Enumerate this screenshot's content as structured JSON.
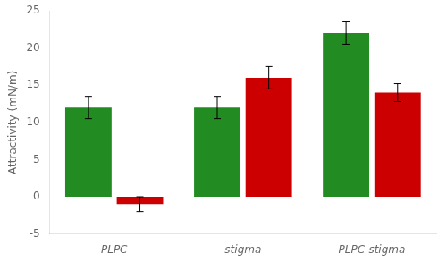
{
  "chart_data": {
    "type": "bar",
    "ylabel": "Attractivity (mN/m)",
    "categories": [
      "PLPC",
      "stigma",
      "PLPC-stigma"
    ],
    "series": [
      {
        "color": "#228B22",
        "values": [
          12,
          12,
          22
        ],
        "errors": [
          1.5,
          1.5,
          1.5
        ]
      },
      {
        "color": "#CC0000",
        "values": [
          -1,
          16,
          14
        ],
        "errors": [
          1.0,
          1.5,
          1.2
        ]
      }
    ],
    "ylim": [
      -5,
      25
    ],
    "yticks": [
      -5,
      0,
      5,
      10,
      15,
      20,
      25
    ],
    "grid": false
  }
}
